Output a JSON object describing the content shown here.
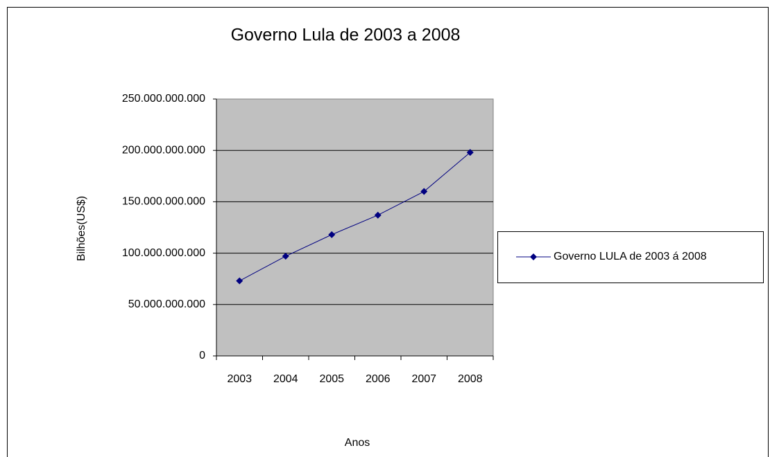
{
  "chart_data": {
    "type": "line",
    "title": "Governo Lula de 2003 a 2008",
    "x_label": "Anos",
    "y_label": "Bilhões(US$)",
    "categories": [
      "2003",
      "2004",
      "2005",
      "2006",
      "2007",
      "2008"
    ],
    "series": [
      {
        "name": "Governo LULA de 2003 á 2008",
        "color": "#000080",
        "values": [
          73000000000,
          97000000000,
          118000000000,
          137000000000,
          160000000000,
          198000000000
        ]
      }
    ],
    "ylim": [
      0,
      250000000000
    ],
    "yticks": [
      0,
      {
        "value": 50000000000,
        "label": "50.000.000.000"
      },
      {
        "value": 100000000000,
        "label": "100.000.000.000"
      },
      {
        "value": 150000000000,
        "label": "150.000.000.000"
      },
      {
        "value": 200000000000,
        "label": "200.000.000.000"
      },
      {
        "value": 250000000000,
        "label": "250.000.000.000"
      }
    ],
    "grid": true,
    "legend": "right",
    "plot_background": "#c0c0c0"
  }
}
